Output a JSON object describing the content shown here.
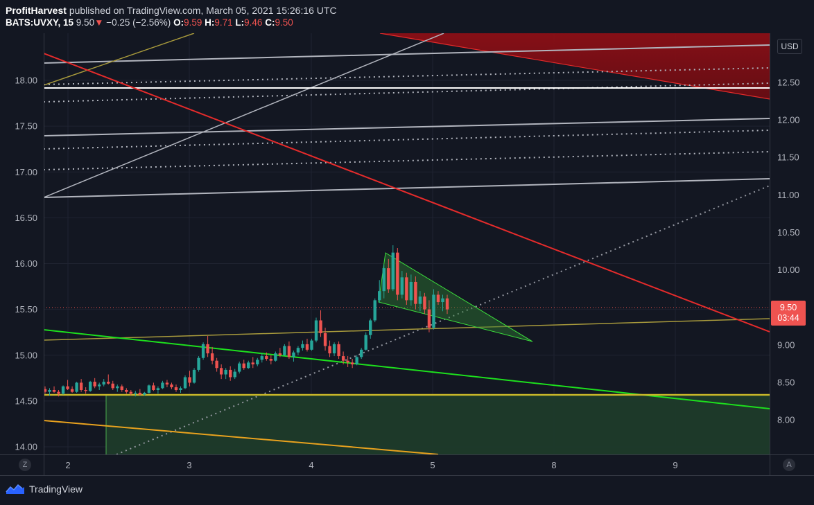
{
  "header": {
    "author": "ProfitHarvest",
    "published_text": "published on TradingView.com, March 05, 2021 15:26:16 UTC",
    "symbol": "BATS:UVXY, 15",
    "last_price": "9.50",
    "change": "−0.25 (−2.56%)",
    "open_label": "O:",
    "open": "9.59",
    "high_label": "H:",
    "high": "9.71",
    "low_label": "L:",
    "low": "9.46",
    "close_label": "C:",
    "close": "9.50"
  },
  "price_scale": {
    "currency_button": "USD",
    "corner_left_button": "Z",
    "corner_right_button": "A"
  },
  "price_tag": {
    "price": "9.50",
    "countdown": "03:44"
  },
  "footer": {
    "brand": "TradingView"
  },
  "colors": {
    "background": "#131722",
    "up": "#26a69a",
    "down": "#ef5350",
    "red_line": "#e52b2b",
    "green_line": "#1de01d",
    "gold_line": "#c9b829",
    "orange_line": "#e9a21e",
    "grey_line": "#b2b5be"
  },
  "chart_data": {
    "type": "candlestick",
    "symbol": "BATS:UVXY",
    "interval": "15",
    "left_axis": {
      "ticks": [
        "14.00",
        "14.50",
        "15.00",
        "15.50",
        "16.00",
        "16.50",
        "17.00",
        "17.50",
        "18.00"
      ],
      "ylim": [
        13.9,
        18.5
      ]
    },
    "right_axis": {
      "ticks": [
        "8.00",
        "8.50",
        "9.00",
        "9.50",
        "10.00",
        "10.50",
        "11.00",
        "11.50",
        "12.00",
        "12.50"
      ],
      "ylim": [
        7.6,
        13.2
      ],
      "unit": "USD"
    },
    "x_ticks": [
      "2",
      "3",
      "4",
      "5",
      "8",
      "9"
    ],
    "grid": true,
    "last_price": 9.5,
    "candles": [
      [
        14.63,
        14.66,
        14.58,
        14.6
      ],
      [
        14.6,
        14.64,
        14.56,
        14.62
      ],
      [
        14.62,
        14.66,
        14.59,
        14.6
      ],
      [
        14.6,
        14.62,
        14.55,
        14.58
      ],
      [
        14.58,
        14.67,
        14.57,
        14.66
      ],
      [
        14.66,
        14.73,
        14.62,
        14.63
      ],
      [
        14.63,
        14.66,
        14.59,
        14.6
      ],
      [
        14.6,
        14.71,
        14.59,
        14.7
      ],
      [
        14.7,
        14.74,
        14.6,
        14.62
      ],
      [
        14.62,
        14.65,
        14.58,
        14.61
      ],
      [
        14.61,
        14.72,
        14.6,
        14.71
      ],
      [
        14.71,
        14.75,
        14.64,
        14.66
      ],
      [
        14.66,
        14.7,
        14.62,
        14.68
      ],
      [
        14.68,
        14.74,
        14.66,
        14.71
      ],
      [
        14.71,
        14.79,
        14.68,
        14.69
      ],
      [
        14.69,
        14.72,
        14.62,
        14.64
      ],
      [
        14.64,
        14.68,
        14.6,
        14.66
      ],
      [
        14.66,
        14.68,
        14.6,
        14.62
      ],
      [
        14.62,
        14.64,
        14.58,
        14.6
      ],
      [
        14.6,
        14.62,
        14.56,
        14.58
      ],
      [
        14.58,
        14.61,
        14.55,
        14.59
      ],
      [
        14.59,
        14.63,
        14.56,
        14.57
      ],
      [
        14.57,
        14.6,
        14.56,
        14.59
      ],
      [
        14.59,
        14.68,
        14.58,
        14.67
      ],
      [
        14.67,
        14.7,
        14.61,
        14.62
      ],
      [
        14.62,
        14.66,
        14.58,
        14.64
      ],
      [
        14.64,
        14.72,
        14.63,
        14.7
      ],
      [
        14.7,
        14.73,
        14.65,
        14.68
      ],
      [
        14.68,
        14.7,
        14.63,
        14.65
      ],
      [
        14.65,
        14.68,
        14.6,
        14.62
      ],
      [
        14.62,
        14.66,
        14.59,
        14.64
      ],
      [
        14.64,
        14.78,
        14.63,
        14.76
      ],
      [
        14.76,
        14.83,
        14.66,
        14.7
      ],
      [
        14.7,
        14.86,
        14.69,
        14.84
      ],
      [
        14.84,
        14.99,
        14.82,
        14.97
      ],
      [
        14.97,
        15.14,
        14.95,
        15.12
      ],
      [
        15.12,
        15.21,
        14.98,
        15.02
      ],
      [
        15.02,
        15.09,
        14.9,
        14.94
      ],
      [
        14.94,
        14.97,
        14.82,
        14.86
      ],
      [
        14.86,
        14.9,
        14.74,
        14.79
      ],
      [
        14.79,
        14.86,
        14.74,
        14.84
      ],
      [
        14.84,
        14.88,
        14.72,
        14.76
      ],
      [
        14.76,
        14.85,
        14.74,
        14.82
      ],
      [
        14.82,
        14.93,
        14.8,
        14.91
      ],
      [
        14.91,
        14.95,
        14.84,
        14.86
      ],
      [
        14.86,
        14.94,
        14.85,
        14.92
      ],
      [
        14.92,
        14.98,
        14.86,
        14.9
      ],
      [
        14.9,
        14.97,
        14.88,
        14.95
      ],
      [
        14.95,
        15.02,
        14.92,
        14.99
      ],
      [
        14.99,
        15.03,
        14.94,
        14.96
      ],
      [
        14.96,
        15.0,
        14.9,
        14.94
      ],
      [
        14.94,
        15.04,
        14.93,
        15.02
      ],
      [
        15.02,
        15.08,
        14.98,
        15.0
      ],
      [
        15.0,
        15.12,
        14.99,
        15.1
      ],
      [
        15.1,
        15.15,
        14.96,
        14.98
      ],
      [
        14.98,
        15.05,
        14.93,
        15.03
      ],
      [
        15.03,
        15.1,
        15.0,
        15.08
      ],
      [
        15.08,
        15.16,
        15.05,
        15.12
      ],
      [
        15.12,
        15.18,
        15.04,
        15.06
      ],
      [
        15.06,
        15.18,
        15.05,
        15.16
      ],
      [
        15.16,
        15.41,
        15.14,
        15.38
      ],
      [
        15.38,
        15.49,
        15.2,
        15.24
      ],
      [
        15.24,
        15.3,
        15.05,
        15.1
      ],
      [
        15.1,
        15.16,
        14.98,
        15.02
      ],
      [
        15.02,
        15.14,
        14.99,
        15.12
      ],
      [
        15.12,
        15.15,
        14.96,
        14.99
      ],
      [
        14.99,
        15.04,
        14.9,
        14.94
      ],
      [
        14.94,
        14.99,
        14.87,
        14.92
      ],
      [
        14.92,
        14.96,
        14.86,
        14.9
      ],
      [
        14.9,
        15.0,
        14.89,
        14.98
      ],
      [
        14.98,
        15.08,
        14.96,
        15.06
      ],
      [
        15.06,
        15.25,
        15.05,
        15.22
      ],
      [
        15.22,
        15.4,
        15.18,
        15.38
      ],
      [
        15.38,
        15.62,
        15.36,
        15.6
      ],
      [
        15.6,
        15.82,
        15.57,
        15.7
      ],
      [
        15.7,
        15.99,
        15.62,
        15.95
      ],
      [
        15.95,
        16.05,
        15.68,
        15.72
      ],
      [
        15.72,
        16.2,
        15.7,
        16.12
      ],
      [
        16.12,
        16.17,
        15.6,
        15.66
      ],
      [
        15.66,
        15.92,
        15.62,
        15.85
      ],
      [
        15.85,
        15.9,
        15.55,
        15.6
      ],
      [
        15.6,
        15.88,
        15.54,
        15.8
      ],
      [
        15.8,
        15.86,
        15.5,
        15.56
      ],
      [
        15.56,
        15.7,
        15.48,
        15.64
      ],
      [
        15.64,
        15.68,
        15.45,
        15.5
      ],
      [
        15.5,
        15.6,
        15.25,
        15.3
      ],
      [
        15.3,
        15.72,
        15.28,
        15.66
      ],
      [
        15.66,
        15.7,
        15.55,
        15.58
      ],
      [
        15.58,
        15.66,
        15.48,
        15.62
      ],
      [
        15.62,
        15.66,
        15.45,
        15.5
      ]
    ]
  }
}
